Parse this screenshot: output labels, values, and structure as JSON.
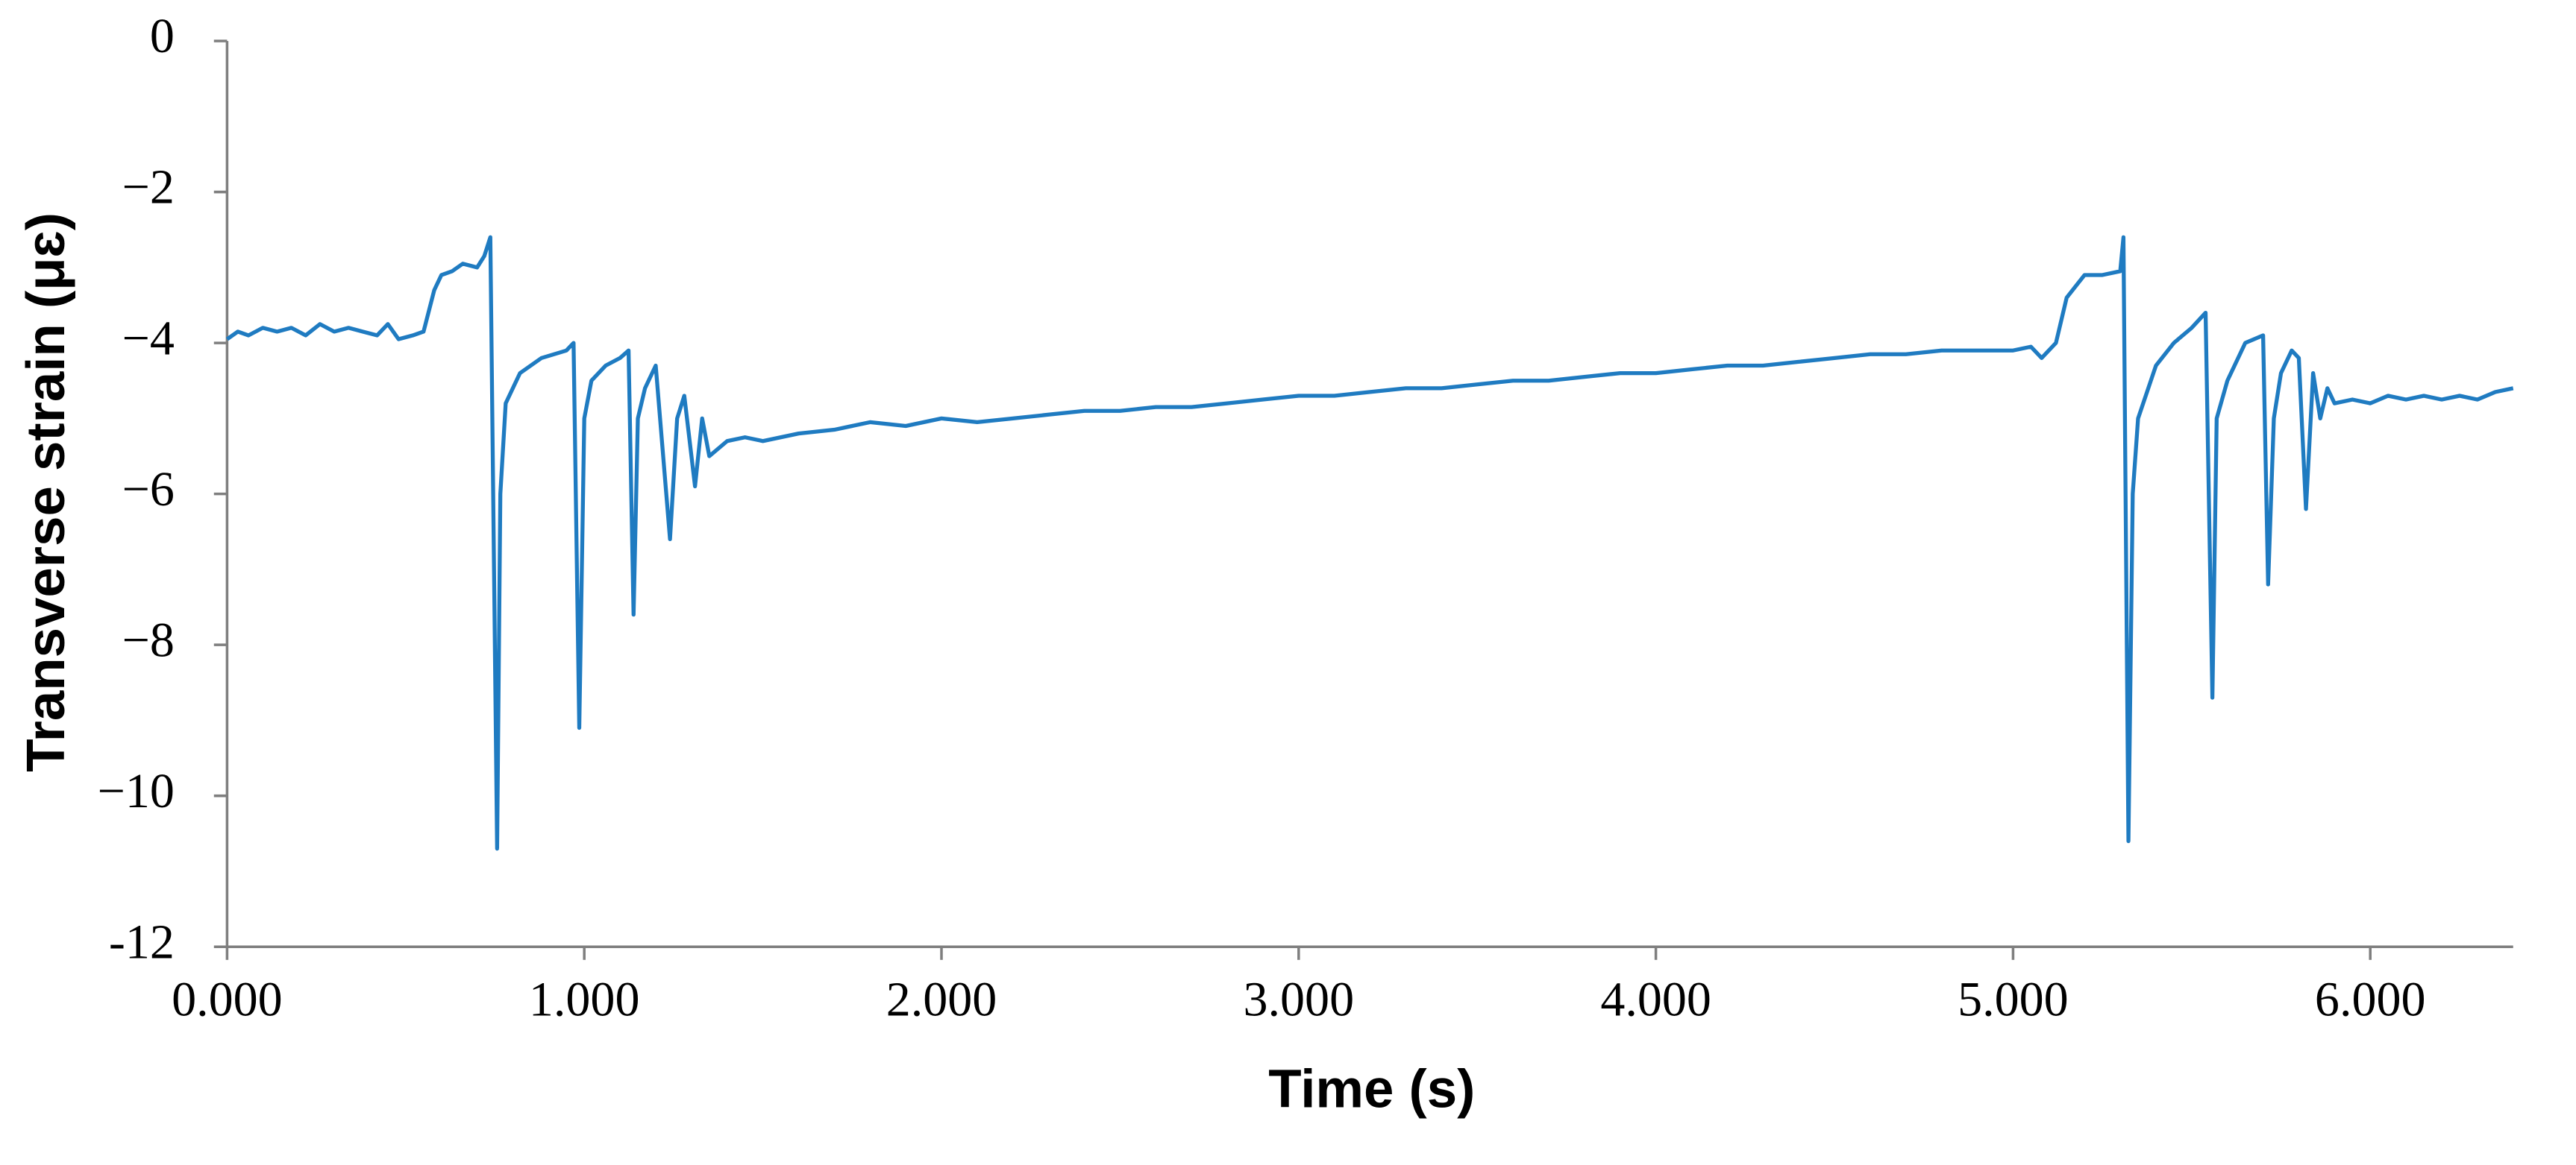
{
  "chart_data": {
    "type": "line",
    "xlabel": "Time (s)",
    "ylabel": "Transverse strain (μɛ)",
    "color": "#1f7bc1",
    "xlim": [
      0,
      6.4
    ],
    "xticks": [
      {
        "value": 0,
        "label": "0.000"
      },
      {
        "value": 1,
        "label": "1.000"
      },
      {
        "value": 2,
        "label": "2.000"
      },
      {
        "value": 3,
        "label": "3.000"
      },
      {
        "value": 4,
        "label": "4.000"
      },
      {
        "value": 5,
        "label": "5.000"
      },
      {
        "value": 6,
        "label": "6.000"
      }
    ],
    "ylim": [
      -12,
      0
    ],
    "yticks": [
      0,
      {
        "value": -2,
        "label": "−2"
      },
      {
        "value": -4,
        "label": "−4"
      },
      {
        "value": -6,
        "label": "−6"
      },
      {
        "value": -8,
        "label": "−8"
      },
      {
        "value": -10,
        "label": "−10"
      },
      -12
    ],
    "x": [
      0,
      0.03,
      0.06,
      0.1,
      0.14,
      0.18,
      0.22,
      0.26,
      0.3,
      0.34,
      0.38,
      0.42,
      0.45,
      0.48,
      0.52,
      0.55,
      0.58,
      0.6,
      0.63,
      0.66,
      0.7,
      0.72,
      0.737,
      0.756,
      0.765,
      0.78,
      0.82,
      0.88,
      0.95,
      0.97,
      0.986,
      1.0,
      1.02,
      1.06,
      1.1,
      1.124,
      1.138,
      1.15,
      1.17,
      1.2,
      1.24,
      1.26,
      1.28,
      1.31,
      1.33,
      1.35,
      1.4,
      1.45,
      1.5,
      1.6,
      1.7,
      1.8,
      1.9,
      2.0,
      2.1,
      2.2,
      2.3,
      2.4,
      2.5,
      2.6,
      2.7,
      2.8,
      2.9,
      3.0,
      3.1,
      3.2,
      3.3,
      3.4,
      3.5,
      3.6,
      3.7,
      3.8,
      3.9,
      4.0,
      4.1,
      4.2,
      4.3,
      4.4,
      4.5,
      4.6,
      4.7,
      4.8,
      4.9,
      5.0,
      5.05,
      5.08,
      5.12,
      5.15,
      5.2,
      5.25,
      5.3,
      5.309,
      5.323,
      5.335,
      5.35,
      5.4,
      5.45,
      5.5,
      5.539,
      5.558,
      5.57,
      5.6,
      5.65,
      5.7,
      5.714,
      5.73,
      5.75,
      5.78,
      5.8,
      5.82,
      5.84,
      5.86,
      5.88,
      5.9,
      5.95,
      6.0,
      6.05,
      6.1,
      6.15,
      6.2,
      6.25,
      6.3,
      6.35,
      6.4
    ],
    "values": [
      -3.95,
      -3.85,
      -3.9,
      -3.8,
      -3.85,
      -3.8,
      -3.9,
      -3.75,
      -3.85,
      -3.8,
      -3.85,
      -3.9,
      -3.75,
      -3.95,
      -3.9,
      -3.85,
      -3.3,
      -3.1,
      -3.05,
      -2.95,
      -3.0,
      -2.85,
      -2.6,
      -10.7,
      -6.0,
      -4.8,
      -4.4,
      -4.2,
      -4.1,
      -4.0,
      -9.1,
      -5.0,
      -4.5,
      -4.3,
      -4.2,
      -4.1,
      -7.6,
      -5.0,
      -4.6,
      -4.3,
      -6.6,
      -5.0,
      -4.7,
      -5.9,
      -5.0,
      -5.5,
      -5.3,
      -5.25,
      -5.3,
      -5.2,
      -5.15,
      -5.05,
      -5.1,
      -5.0,
      -5.05,
      -5.0,
      -4.95,
      -4.9,
      -4.9,
      -4.85,
      -4.85,
      -4.8,
      -4.75,
      -4.7,
      -4.7,
      -4.65,
      -4.6,
      -4.6,
      -4.55,
      -4.5,
      -4.5,
      -4.45,
      -4.4,
      -4.4,
      -4.35,
      -4.3,
      -4.3,
      -4.25,
      -4.2,
      -4.15,
      -4.15,
      -4.1,
      -4.1,
      -4.1,
      -4.05,
      -4.2,
      -4.0,
      -3.4,
      -3.1,
      -3.1,
      -3.05,
      -2.6,
      -10.6,
      -6.0,
      -5.0,
      -4.3,
      -4.0,
      -3.8,
      -3.6,
      -8.7,
      -5.0,
      -4.5,
      -4.0,
      -3.9,
      -7.2,
      -5.0,
      -4.4,
      -4.1,
      -4.2,
      -6.2,
      -4.4,
      -5.0,
      -4.6,
      -4.8,
      -4.75,
      -4.8,
      -4.7,
      -4.75,
      -4.7,
      -4.75,
      -4.7,
      -4.75,
      -4.65,
      -4.6
    ]
  }
}
